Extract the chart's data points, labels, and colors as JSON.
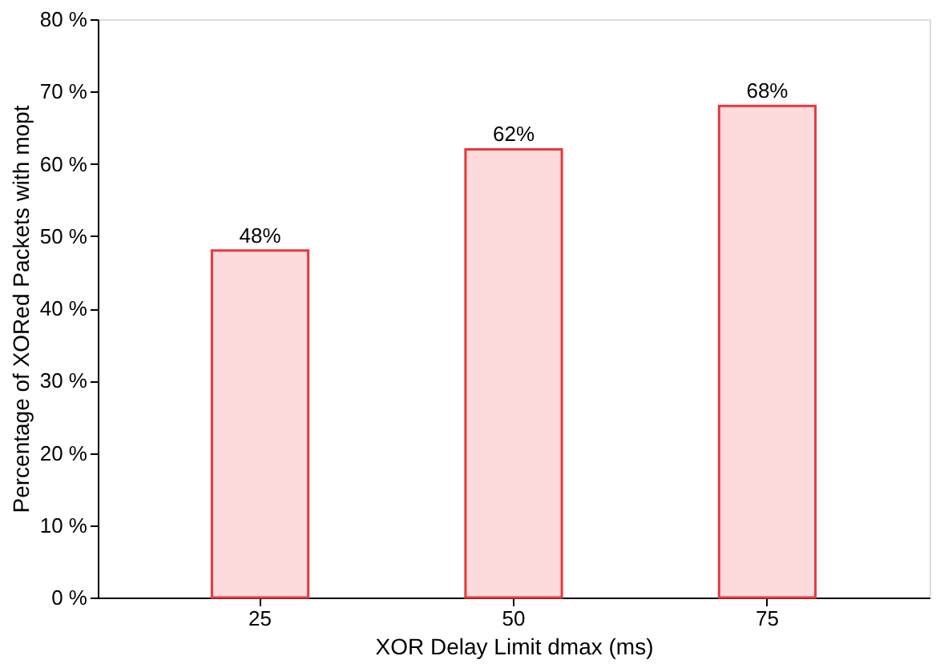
{
  "chart_data": {
    "type": "bar",
    "xlabel": "XOR Delay Limit dmax (ms)",
    "ylabel": "Percentage of XORed Packets with mopt",
    "categories": [
      "25",
      "50",
      "75"
    ],
    "values": [
      48,
      62,
      68
    ],
    "value_labels": [
      "48%",
      "62%",
      "68%"
    ],
    "color": "#e8383d",
    "ylim": [
      0,
      80
    ],
    "yticks": [
      {
        "value": 0,
        "label": "0 %"
      },
      {
        "value": 10,
        "label": "10 %"
      },
      {
        "value": 20,
        "label": "20 %"
      },
      {
        "value": 30,
        "label": "30 %"
      },
      {
        "value": 40,
        "label": "40 %"
      },
      {
        "value": 50,
        "label": "50 %"
      },
      {
        "value": 60,
        "label": "60 %"
      },
      {
        "value": 70,
        "label": "70 %"
      },
      {
        "value": 80,
        "label": "80 %"
      }
    ],
    "grid": false
  }
}
